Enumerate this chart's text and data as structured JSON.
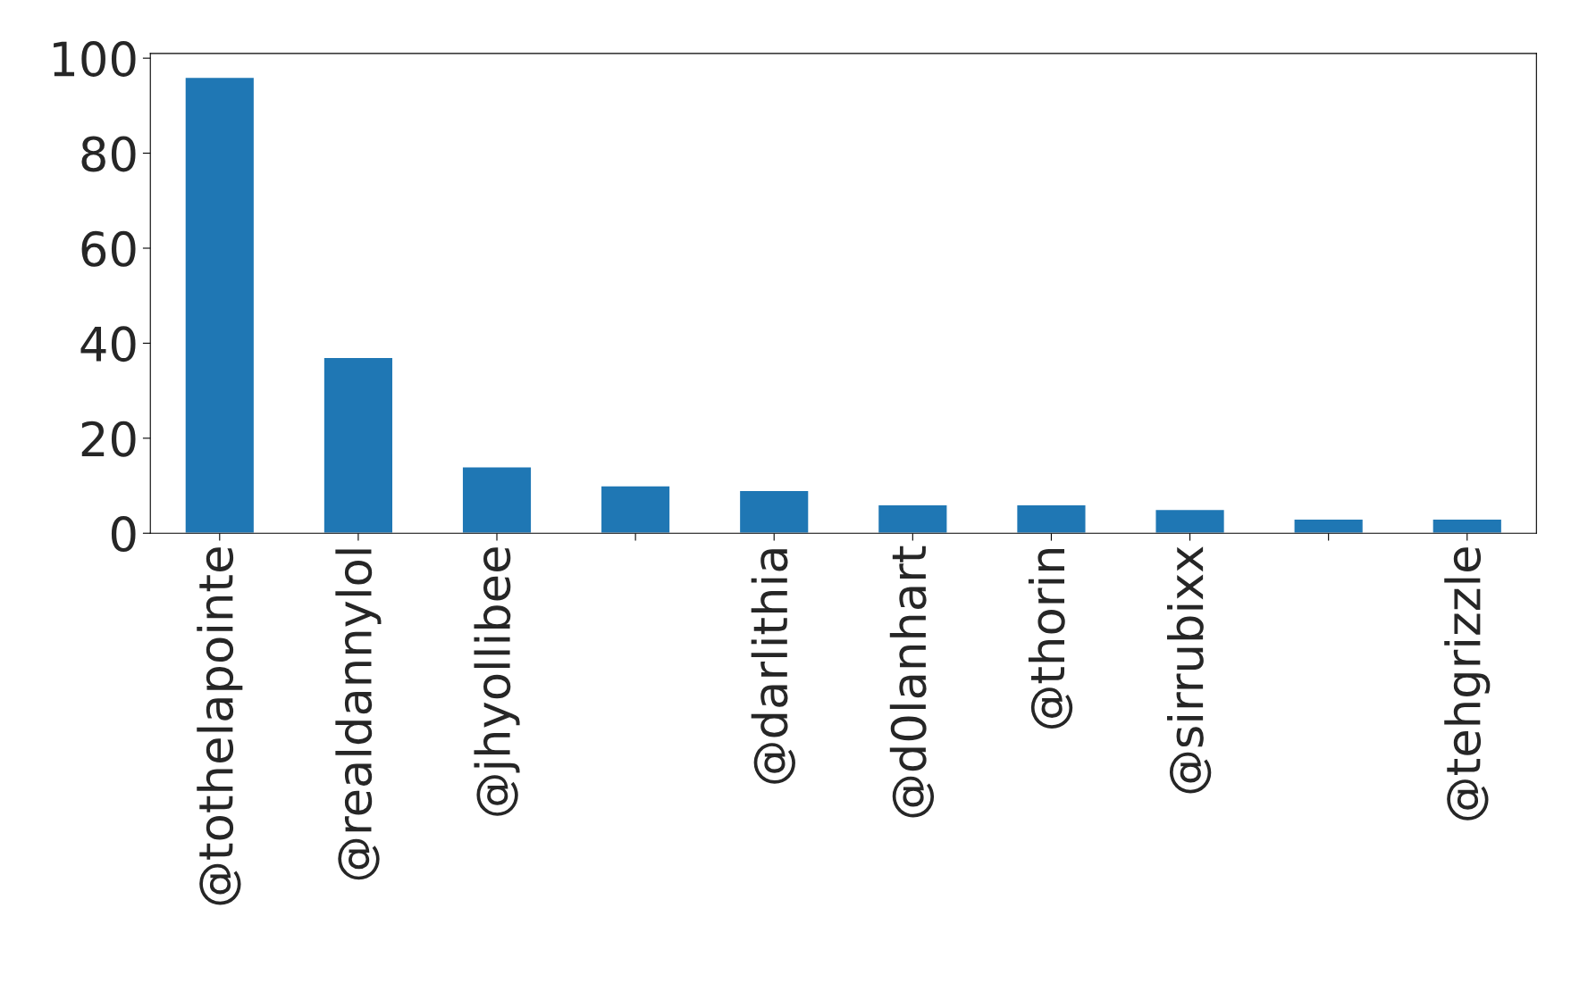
{
  "chart_data": {
    "type": "bar",
    "categories": [
      "@tothelapointe",
      "@realdannylol",
      "@jhyollibee",
      null,
      "@darlithia",
      "@d0lanhart",
      "@thorin",
      "@sirrubixx",
      null,
      "@tehgrizzle"
    ],
    "values": [
      96,
      37,
      14,
      10,
      9,
      6,
      6,
      5,
      3,
      3
    ],
    "color": "#1f77b4",
    "ylim": [
      0,
      101
    ],
    "yticks": [
      0,
      20,
      40,
      60,
      80,
      100
    ],
    "grid": false,
    "legend": false
  }
}
